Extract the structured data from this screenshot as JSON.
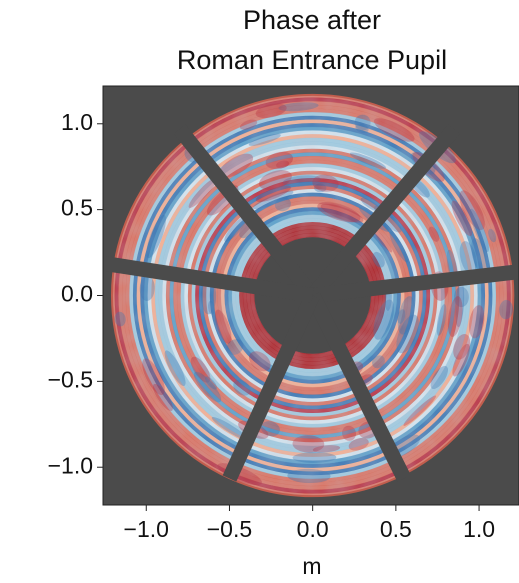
{
  "chart_data": {
    "type": "image",
    "title": [
      "Phase after",
      "Roman Entrance Pupil"
    ],
    "x_label": "m",
    "xlim": [
      -1.26,
      1.24
    ],
    "ylim": [
      -1.22,
      1.22
    ],
    "xticks": [
      {
        "value": -1.0,
        "label": "−1.0"
      },
      {
        "value": -0.5,
        "label": "−0.5"
      },
      {
        "value": 0.0,
        "label": "0.0"
      },
      0.5,
      {
        "value": 1.0,
        "label": "1.0"
      }
    ],
    "yticks": [
      {
        "value": 1.0,
        "label": "1.0"
      },
      0.5,
      {
        "value": 0.0,
        "label": "0.0"
      },
      {
        "value": -0.5,
        "label": "−0.5"
      },
      {
        "value": -1.0,
        "label": "−1.0"
      }
    ]
  }
}
